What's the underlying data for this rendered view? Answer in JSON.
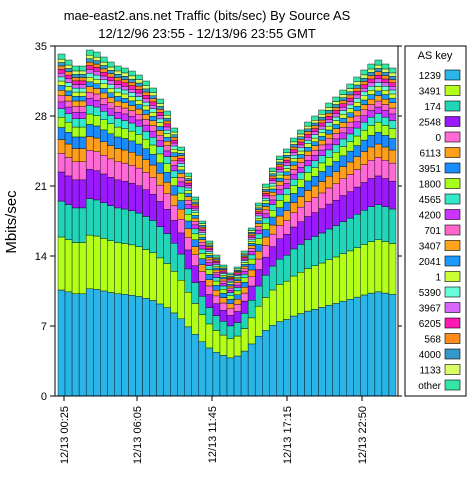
{
  "chart_data": {
    "type": "area",
    "title": "mae-east2.ans.net Traffic (bits/sec) By Source AS",
    "subtitle": "12/12/96 23:55 - 12/13/96 23:55 GMT",
    "xlabel": "",
    "ylabel": "Mbits/sec",
    "ylim": [
      0,
      35
    ],
    "yticks": [
      0,
      7,
      14,
      21,
      28,
      35
    ],
    "xticks": [
      "12/13 00:25",
      "12/13 06:05",
      "12/13 11:45",
      "12/13 17:15",
      "12/13 22:50"
    ],
    "stacked": true,
    "grid": false,
    "legend_title": "AS key",
    "legend_position": "right",
    "n_samples": 48,
    "totals": [
      34.2,
      33.6,
      33.0,
      33.0,
      34.6,
      34.4,
      33.9,
      33.4,
      33.0,
      32.8,
      32.5,
      32.1,
      31.5,
      30.8,
      29.7,
      28.5,
      26.8,
      24.9,
      22.3,
      19.9,
      17.5,
      15.5,
      14.1,
      13.1,
      12.3,
      12.9,
      14.5,
      16.8,
      19.3,
      21.2,
      22.8,
      24.0,
      24.7,
      25.8,
      26.6,
      27.4,
      28.0,
      28.6,
      29.3,
      29.9,
      30.6,
      31.2,
      31.9,
      32.6,
      33.2,
      33.6,
      33.2,
      32.8
    ],
    "legend": [
      {
        "name": "1239",
        "color": "#29b5e8",
        "share": 0.31
      },
      {
        "name": "3491",
        "color": "#b3ff1a",
        "share": 0.155
      },
      {
        "name": "174",
        "color": "#22d4b8",
        "share": 0.105
      },
      {
        "name": "2548",
        "color": "#9b19ff",
        "share": 0.085
      },
      {
        "name": "0",
        "color": "#ff6ad6",
        "share": 0.055
      },
      {
        "name": "6113",
        "color": "#ff9e1a",
        "share": 0.04
      },
      {
        "name": "3951",
        "color": "#1a8cff",
        "share": 0.035
      },
      {
        "name": "1800",
        "color": "#a6ff1a",
        "share": 0.03
      },
      {
        "name": "4565",
        "color": "#33e8c8",
        "share": 0.025
      },
      {
        "name": "4200",
        "color": "#cc33ff",
        "share": 0.02
      },
      {
        "name": "701",
        "color": "#ff66cc",
        "share": 0.018
      },
      {
        "name": "3407",
        "color": "#ffa31a",
        "share": 0.016
      },
      {
        "name": "2041",
        "color": "#1a99ff",
        "share": 0.014
      },
      {
        "name": "1",
        "color": "#ccff33",
        "share": 0.013
      },
      {
        "name": "5390",
        "color": "#66ffd9",
        "share": 0.012
      },
      {
        "name": "3967",
        "color": "#d966ff",
        "share": 0.011
      },
      {
        "name": "6205",
        "color": "#ff1ab3",
        "share": 0.011
      },
      {
        "name": "568",
        "color": "#ff8c1a",
        "share": 0.01
      },
      {
        "name": "4000",
        "color": "#3399cc",
        "share": 0.01
      },
      {
        "name": "1133",
        "color": "#d9ff66",
        "share": 0.01
      },
      {
        "name": "other",
        "color": "#33e6a6",
        "share": 0.015
      }
    ]
  }
}
